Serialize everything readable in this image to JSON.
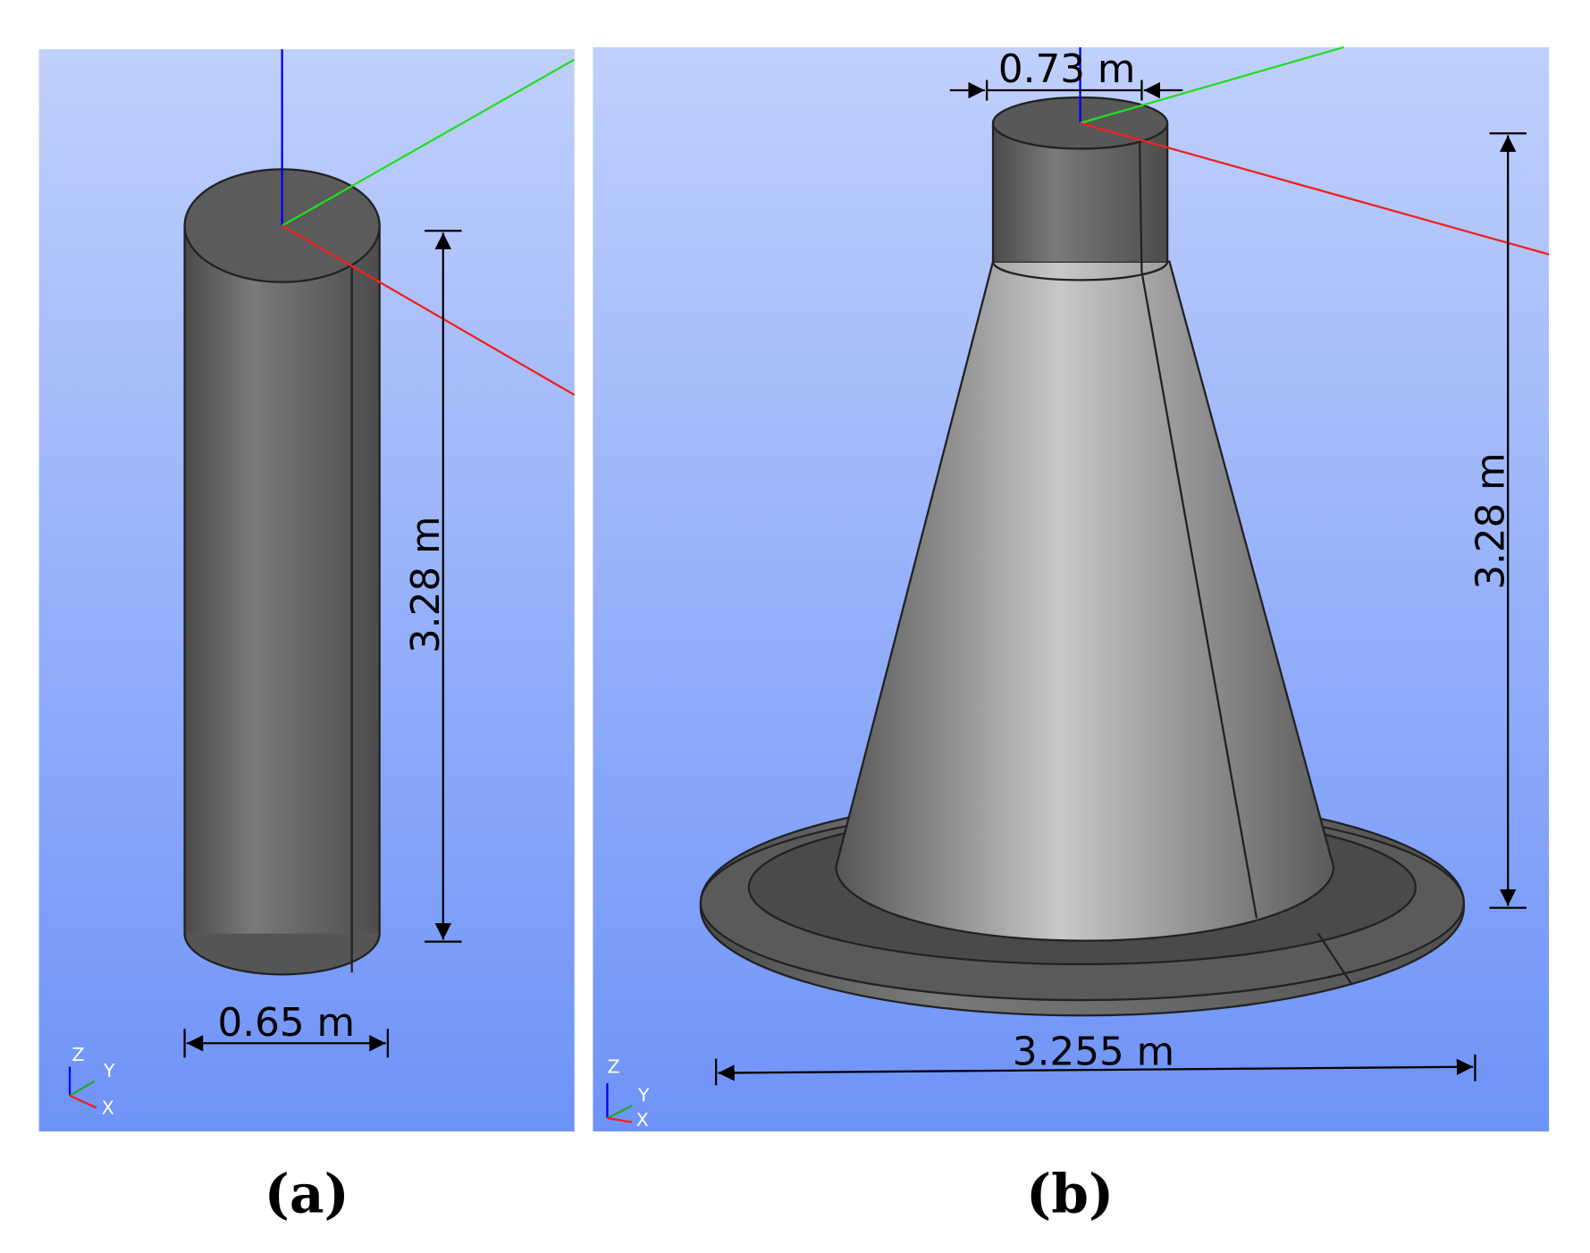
{
  "panels": [
    {
      "label": "(a)",
      "height_label": "3.28 m",
      "width_label": "0.65 m",
      "axis_labels": [
        "Z",
        "Y",
        "X"
      ]
    },
    {
      "label": "(b)",
      "top_width_label": "0.73 m",
      "height_label": "3.28 m",
      "width_label": "3.255 m",
      "axis_labels": [
        "Z",
        "Y",
        "X"
      ]
    }
  ]
}
